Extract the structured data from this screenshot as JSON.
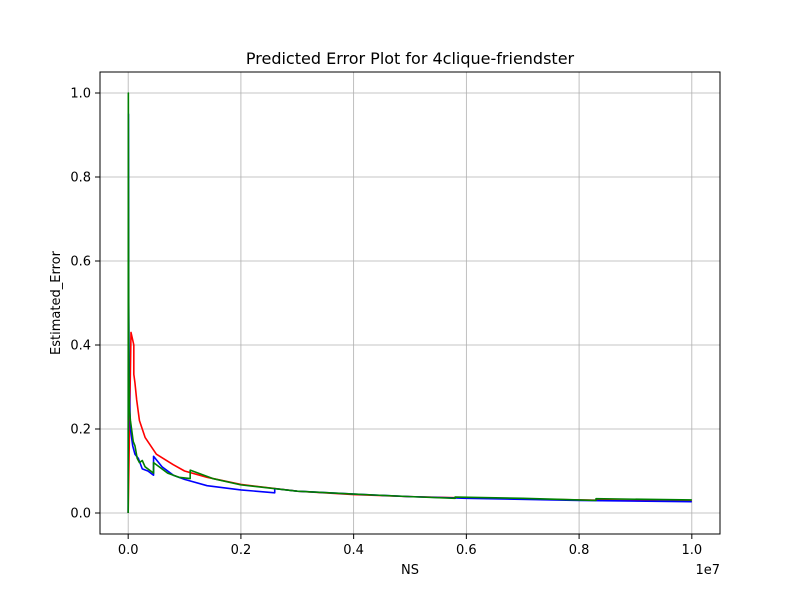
{
  "chart_data": {
    "type": "line",
    "title": "Predicted Error Plot for 4clique-friendster",
    "xlabel": "NS",
    "ylabel": "Estimated_Error",
    "x_offset_label": "1e7",
    "xlim": [
      -0.05,
      1.05
    ],
    "ylim": [
      -0.05,
      1.05
    ],
    "xticks": [
      0.0,
      0.2,
      0.4,
      0.6,
      0.8,
      1.0
    ],
    "xtick_labels": [
      "0.0",
      "0.2",
      "0.4",
      "0.6",
      "0.8",
      "1.0"
    ],
    "yticks": [
      0.0,
      0.2,
      0.4,
      0.6,
      0.8,
      1.0
    ],
    "ytick_labels": [
      "0.0",
      "0.2",
      "0.4",
      "0.6",
      "0.8",
      "1.0"
    ],
    "grid": true,
    "legend": "none",
    "series": [
      {
        "color": "#ff0000",
        "x": [
          0.0,
          0.005,
          0.01,
          0.01,
          0.012,
          0.015,
          0.02,
          0.03,
          0.05,
          0.08,
          0.1,
          0.14,
          0.2,
          0.3,
          0.4,
          0.5,
          0.6,
          0.8,
          1.0
        ],
        "y": [
          0.0,
          0.43,
          0.4,
          0.33,
          0.31,
          0.27,
          0.22,
          0.18,
          0.14,
          0.115,
          0.1,
          0.085,
          0.068,
          0.052,
          0.044,
          0.039,
          0.036,
          0.031,
          0.028
        ]
      },
      {
        "color": "#0000ff",
        "x": [
          0.0,
          0.0005,
          0.001,
          0.002,
          0.004,
          0.008,
          0.012,
          0.018,
          0.025,
          0.035,
          0.045,
          0.045,
          0.06,
          0.08,
          0.1,
          0.14,
          0.2,
          0.26,
          0.26,
          0.3,
          0.4,
          0.5,
          0.6,
          0.8,
          1.0
        ],
        "y": [
          0.0,
          0.95,
          0.5,
          0.3,
          0.2,
          0.16,
          0.14,
          0.13,
          0.105,
          0.1,
          0.09,
          0.135,
          0.11,
          0.09,
          0.08,
          0.065,
          0.055,
          0.048,
          0.058,
          0.052,
          0.045,
          0.039,
          0.035,
          0.03,
          0.027
        ]
      },
      {
        "color": "#008000",
        "x": [
          0.0,
          0.0003,
          0.0006,
          0.001,
          0.002,
          0.004,
          0.006,
          0.009,
          0.012,
          0.016,
          0.02,
          0.025,
          0.03,
          0.045,
          0.045,
          0.07,
          0.09,
          0.11,
          0.11,
          0.15,
          0.2,
          0.3,
          0.4,
          0.5,
          0.58,
          0.58,
          0.7,
          0.83,
          0.83,
          1.0
        ],
        "y": [
          0.0,
          1.0,
          0.7,
          0.4,
          0.25,
          0.22,
          0.2,
          0.17,
          0.16,
          0.13,
          0.12,
          0.125,
          0.11,
          0.095,
          0.12,
          0.095,
          0.085,
          0.082,
          0.102,
          0.082,
          0.067,
          0.052,
          0.045,
          0.039,
          0.035,
          0.038,
          0.035,
          0.03,
          0.034,
          0.031
        ]
      }
    ]
  }
}
